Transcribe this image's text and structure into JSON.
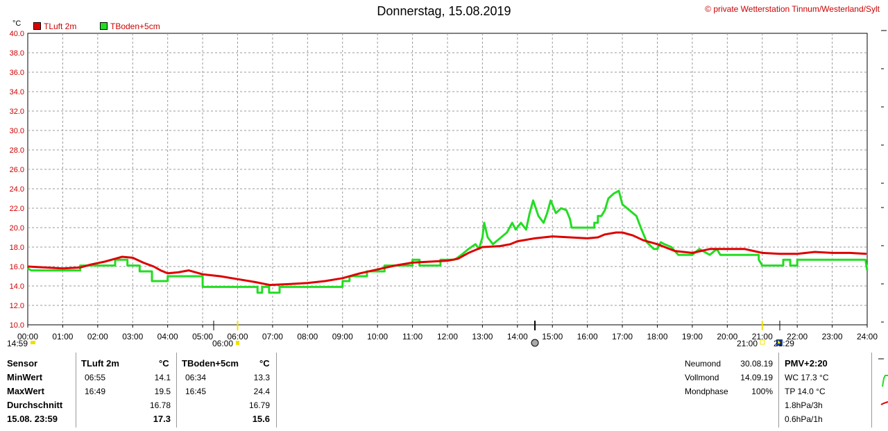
{
  "header": {
    "title": "Donnerstag, 15.08.2019",
    "copyright": "© private Wetterstation Tinnum/Westerland/Sylt",
    "unit": "°C"
  },
  "colors": {
    "tluft": "#dd0000",
    "tboden": "#22dd22"
  },
  "chart_data": {
    "type": "line",
    "title": "Donnerstag, 15.08.2019",
    "ylabel": "°C",
    "ylim": [
      10,
      40
    ],
    "yticks": [
      "10.0",
      "12.0",
      "14.0",
      "16.0",
      "18.0",
      "20.0",
      "22.0",
      "24.0",
      "26.0",
      "28.0",
      "30.0",
      "32.0",
      "34.0",
      "36.0",
      "38.0",
      "40.0"
    ],
    "xlim": [
      0,
      24
    ],
    "xticks": [
      "00:00",
      "01:00",
      "02:00",
      "03:00",
      "04:00",
      "05:00",
      "06:00",
      "07:00",
      "08:00",
      "09:00",
      "10:00",
      "11:00",
      "12:00",
      "13:00",
      "14:00",
      "15:00",
      "16:00",
      "17:00",
      "18:00",
      "19:00",
      "20:00",
      "21:00",
      "22:00",
      "23:00",
      "24:00"
    ],
    "grid": true,
    "legend_position": "top-left",
    "markers": {
      "sunrise_time": "06:00",
      "sunrise_hour": 6.0,
      "noon_hour": 14.5,
      "sunset_time": "21:00",
      "sunset_hour": 21.0,
      "moonset_time": "14:59",
      "moonrise_time": "21:29",
      "moonrise_hour": 21.48
    },
    "series": [
      {
        "name": "TLuft 2m",
        "color": "#dd0000",
        "points": [
          [
            0,
            16.0
          ],
          [
            0.5,
            15.9
          ],
          [
            1.0,
            15.8
          ],
          [
            1.5,
            15.9
          ],
          [
            1.8,
            16.2
          ],
          [
            2.2,
            16.5
          ],
          [
            2.5,
            16.8
          ],
          [
            2.7,
            17.0
          ],
          [
            3.0,
            16.9
          ],
          [
            3.3,
            16.4
          ],
          [
            3.6,
            16.0
          ],
          [
            3.8,
            15.6
          ],
          [
            4.0,
            15.3
          ],
          [
            4.3,
            15.4
          ],
          [
            4.6,
            15.6
          ],
          [
            5.0,
            15.2
          ],
          [
            5.5,
            15.0
          ],
          [
            6.0,
            14.7
          ],
          [
            6.5,
            14.4
          ],
          [
            6.92,
            14.1
          ],
          [
            7.5,
            14.2
          ],
          [
            8.0,
            14.3
          ],
          [
            8.5,
            14.5
          ],
          [
            9.0,
            14.8
          ],
          [
            9.5,
            15.3
          ],
          [
            10.0,
            15.7
          ],
          [
            10.5,
            16.1
          ],
          [
            11.0,
            16.4
          ],
          [
            11.5,
            16.5
          ],
          [
            12.0,
            16.6
          ],
          [
            12.3,
            16.8
          ],
          [
            12.6,
            17.4
          ],
          [
            13.0,
            18.0
          ],
          [
            13.5,
            18.1
          ],
          [
            13.8,
            18.3
          ],
          [
            14.0,
            18.6
          ],
          [
            14.5,
            18.9
          ],
          [
            15.0,
            19.1
          ],
          [
            15.5,
            19.0
          ],
          [
            16.0,
            18.9
          ],
          [
            16.3,
            19.0
          ],
          [
            16.5,
            19.3
          ],
          [
            16.82,
            19.5
          ],
          [
            17.0,
            19.5
          ],
          [
            17.3,
            19.2
          ],
          [
            17.6,
            18.7
          ],
          [
            18.0,
            18.3
          ],
          [
            18.5,
            17.6
          ],
          [
            19.0,
            17.4
          ],
          [
            19.5,
            17.8
          ],
          [
            20.0,
            17.8
          ],
          [
            20.5,
            17.8
          ],
          [
            21.0,
            17.4
          ],
          [
            21.5,
            17.3
          ],
          [
            22.0,
            17.3
          ],
          [
            22.5,
            17.5
          ],
          [
            23.0,
            17.4
          ],
          [
            23.5,
            17.4
          ],
          [
            23.98,
            17.3
          ]
        ]
      },
      {
        "name": "TBoden+5cm",
        "color": "#22dd22",
        "points": [
          [
            0,
            15.8
          ],
          [
            0.1,
            15.6
          ],
          [
            1.5,
            15.6
          ],
          [
            1.5,
            16.1
          ],
          [
            2.5,
            16.1
          ],
          [
            2.5,
            16.7
          ],
          [
            2.85,
            16.7
          ],
          [
            2.85,
            16.1
          ],
          [
            3.2,
            16.1
          ],
          [
            3.2,
            15.5
          ],
          [
            3.55,
            15.5
          ],
          [
            3.55,
            15.0
          ],
          [
            3.55,
            14.5
          ],
          [
            4.0,
            14.5
          ],
          [
            4.0,
            15.0
          ],
          [
            5.0,
            15.0
          ],
          [
            5.0,
            14.5
          ],
          [
            5.0,
            13.9
          ],
          [
            6.57,
            13.9
          ],
          [
            6.57,
            13.3
          ],
          [
            6.7,
            13.3
          ],
          [
            6.7,
            13.9
          ],
          [
            6.9,
            13.9
          ],
          [
            6.9,
            13.3
          ],
          [
            7.2,
            13.3
          ],
          [
            7.2,
            13.9
          ],
          [
            9.0,
            13.9
          ],
          [
            9.0,
            14.5
          ],
          [
            9.2,
            14.5
          ],
          [
            9.2,
            15.0
          ],
          [
            9.7,
            15.0
          ],
          [
            9.7,
            15.5
          ],
          [
            10.2,
            15.5
          ],
          [
            10.2,
            16.1
          ],
          [
            11.0,
            16.1
          ],
          [
            11.0,
            16.7
          ],
          [
            11.2,
            16.7
          ],
          [
            11.2,
            16.1
          ],
          [
            11.8,
            16.1
          ],
          [
            11.8,
            16.7
          ],
          [
            12.0,
            16.7
          ],
          [
            12.2,
            16.7
          ],
          [
            12.4,
            17.2
          ],
          [
            12.6,
            17.8
          ],
          [
            12.8,
            18.3
          ],
          [
            12.9,
            17.8
          ],
          [
            13.0,
            19.0
          ],
          [
            13.05,
            20.5
          ],
          [
            13.15,
            19.0
          ],
          [
            13.3,
            18.3
          ],
          [
            13.5,
            18.9
          ],
          [
            13.7,
            19.5
          ],
          [
            13.85,
            20.5
          ],
          [
            13.95,
            19.8
          ],
          [
            14.1,
            20.5
          ],
          [
            14.25,
            19.8
          ],
          [
            14.35,
            21.5
          ],
          [
            14.45,
            22.8
          ],
          [
            14.6,
            21.2
          ],
          [
            14.75,
            20.5
          ],
          [
            14.85,
            21.5
          ],
          [
            14.95,
            22.8
          ],
          [
            15.1,
            21.5
          ],
          [
            15.25,
            22.0
          ],
          [
            15.4,
            21.8
          ],
          [
            15.5,
            20.9
          ],
          [
            15.55,
            20.0
          ],
          [
            16.0,
            20.0
          ],
          [
            16.2,
            20.0
          ],
          [
            16.2,
            20.5
          ],
          [
            16.3,
            20.5
          ],
          [
            16.3,
            21.2
          ],
          [
            16.4,
            21.2
          ],
          [
            16.5,
            21.8
          ],
          [
            16.6,
            23.0
          ],
          [
            16.75,
            23.5
          ],
          [
            16.9,
            23.8
          ],
          [
            17.0,
            22.4
          ],
          [
            17.2,
            21.8
          ],
          [
            17.4,
            21.2
          ],
          [
            17.55,
            19.8
          ],
          [
            17.7,
            18.5
          ],
          [
            17.9,
            17.8
          ],
          [
            18.0,
            17.8
          ],
          [
            18.1,
            18.5
          ],
          [
            18.2,
            18.3
          ],
          [
            18.4,
            18.0
          ],
          [
            18.6,
            17.2
          ],
          [
            19.0,
            17.2
          ],
          [
            19.2,
            17.8
          ],
          [
            19.5,
            17.2
          ],
          [
            19.7,
            17.8
          ],
          [
            19.8,
            17.2
          ],
          [
            20.5,
            17.2
          ],
          [
            20.9,
            17.2
          ],
          [
            20.9,
            16.7
          ],
          [
            21.0,
            16.1
          ],
          [
            21.3,
            16.1
          ],
          [
            21.6,
            16.1
          ],
          [
            21.6,
            16.7
          ],
          [
            21.8,
            16.7
          ],
          [
            21.8,
            16.1
          ],
          [
            22.0,
            16.1
          ],
          [
            22.0,
            16.7
          ],
          [
            23.95,
            16.7
          ],
          [
            24.0,
            15.6
          ]
        ]
      }
    ]
  },
  "stats": {
    "headers": {
      "sensor": "Sensor",
      "s1": "TLuft 2m",
      "s1_unit": "°C",
      "s2": "TBoden+5cm",
      "s2_unit": "°C"
    },
    "rows": [
      {
        "label": "MinWert",
        "s1_time": "06:55",
        "s1_value": "14.1",
        "s2_time": "06:34",
        "s2_value": "13.3",
        "bold": false
      },
      {
        "label": "MaxWert",
        "s1_time": "16:49",
        "s1_value": "19.5",
        "s2_time": "16:45",
        "s2_value": "24.4",
        "bold": false
      },
      {
        "label": "Durchschnitt",
        "s1_time": "",
        "s1_value": "16.78",
        "s2_time": "",
        "s2_value": "16.79",
        "bold": false
      },
      {
        "label": "15.08. 23:59",
        "s1_time": "",
        "s1_value": "17.3",
        "s2_time": "",
        "s2_value": "15.6",
        "bold": true
      }
    ]
  },
  "moon": [
    {
      "label": "Neumond",
      "value": "30.08.19"
    },
    {
      "label": "Vollmond",
      "value": "14.09.19"
    },
    {
      "label": "Mondphase",
      "value": "100%"
    }
  ],
  "extra": {
    "title": "PMV+2:20",
    "items": [
      "WC 17.3 °C",
      "TP 14.0 °C",
      "1.8hPa/3h",
      "0.6hPa/1h"
    ]
  }
}
